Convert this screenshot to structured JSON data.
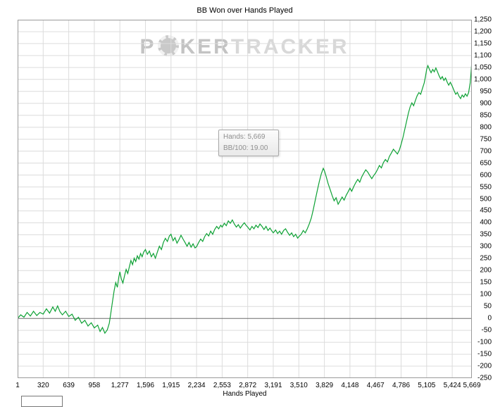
{
  "watermark": {
    "part1": "P",
    "part2": "KER",
    "part3": "TRACKER"
  },
  "tooltip": {
    "hands": "Hands: 5,669",
    "bb100": "BB/100: 19.00"
  },
  "chart_data": {
    "type": "line",
    "title": "BB Won over Hands Played",
    "xlabel": "Hands Played",
    "ylabel": "BB Won",
    "xlim": [
      1,
      5669
    ],
    "ylim": [
      -250,
      1250
    ],
    "grid": true,
    "legend": "none",
    "line_color": "#0da134",
    "grid_color": "#dcdcdc",
    "zero_color": "#6b6b6b",
    "frame_color": "#9a9a9a",
    "x_ticks": [
      1,
      320,
      639,
      958,
      1277,
      1596,
      1915,
      2234,
      2553,
      2872,
      3191,
      3510,
      3829,
      4148,
      4467,
      4786,
      5105,
      5424,
      5669
    ],
    "x_tick_labels": [
      "1",
      "320",
      "639",
      "958",
      "1,277",
      "1,596",
      "1,915",
      "2,234",
      "2,553",
      "2,872",
      "3,191",
      "3,510",
      "3,829",
      "4,148",
      "4,467",
      "4,786",
      "5,105",
      "5,424",
      "5,669"
    ],
    "y_ticks": [
      -250,
      -200,
      -150,
      -100,
      -50,
      0,
      50,
      100,
      150,
      200,
      250,
      300,
      350,
      400,
      450,
      500,
      550,
      600,
      650,
      700,
      750,
      800,
      850,
      900,
      950,
      1000,
      1050,
      1100,
      1150,
      1200,
      1250
    ],
    "y_tick_labels": [
      "-250",
      "-200",
      "-150",
      "-100",
      "-50",
      "0",
      "50",
      "100",
      "150",
      "200",
      "250",
      "300",
      "350",
      "400",
      "450",
      "500",
      "550",
      "600",
      "650",
      "700",
      "750",
      "800",
      "850",
      "900",
      "950",
      "1,000",
      "1,050",
      "1,100",
      "1,150",
      "1,200",
      "1,250"
    ],
    "series": [
      {
        "name": "BB Won",
        "points": [
          [
            1,
            0
          ],
          [
            40,
            15
          ],
          [
            80,
            5
          ],
          [
            120,
            25
          ],
          [
            160,
            10
          ],
          [
            200,
            30
          ],
          [
            240,
            12
          ],
          [
            280,
            25
          ],
          [
            320,
            18
          ],
          [
            360,
            40
          ],
          [
            400,
            22
          ],
          [
            440,
            48
          ],
          [
            470,
            30
          ],
          [
            500,
            52
          ],
          [
            530,
            28
          ],
          [
            560,
            15
          ],
          [
            600,
            30
          ],
          [
            639,
            8
          ],
          [
            680,
            18
          ],
          [
            720,
            -8
          ],
          [
            760,
            5
          ],
          [
            800,
            -20
          ],
          [
            840,
            -8
          ],
          [
            880,
            -32
          ],
          [
            920,
            -18
          ],
          [
            958,
            -40
          ],
          [
            1000,
            -28
          ],
          [
            1030,
            -55
          ],
          [
            1060,
            -38
          ],
          [
            1090,
            -62
          ],
          [
            1120,
            -48
          ],
          [
            1145,
            -20
          ],
          [
            1165,
            25
          ],
          [
            1185,
            70
          ],
          [
            1205,
            115
          ],
          [
            1225,
            150
          ],
          [
            1245,
            130
          ],
          [
            1265,
            175
          ],
          [
            1277,
            195
          ],
          [
            1295,
            165
          ],
          [
            1315,
            148
          ],
          [
            1335,
            178
          ],
          [
            1355,
            205
          ],
          [
            1375,
            188
          ],
          [
            1395,
            215
          ],
          [
            1415,
            242
          ],
          [
            1435,
            225
          ],
          [
            1455,
            252
          ],
          [
            1475,
            238
          ],
          [
            1495,
            262
          ],
          [
            1515,
            248
          ],
          [
            1535,
            272
          ],
          [
            1555,
            258
          ],
          [
            1575,
            278
          ],
          [
            1596,
            288
          ],
          [
            1620,
            268
          ],
          [
            1645,
            282
          ],
          [
            1670,
            258
          ],
          [
            1695,
            272
          ],
          [
            1720,
            252
          ],
          [
            1745,
            278
          ],
          [
            1770,
            302
          ],
          [
            1795,
            288
          ],
          [
            1820,
            318
          ],
          [
            1845,
            335
          ],
          [
            1870,
            322
          ],
          [
            1895,
            345
          ],
          [
            1915,
            352
          ],
          [
            1940,
            325
          ],
          [
            1965,
            338
          ],
          [
            1990,
            315
          ],
          [
            2015,
            330
          ],
          [
            2040,
            348
          ],
          [
            2065,
            332
          ],
          [
            2090,
            318
          ],
          [
            2115,
            302
          ],
          [
            2140,
            318
          ],
          [
            2165,
            298
          ],
          [
            2190,
            312
          ],
          [
            2215,
            295
          ],
          [
            2234,
            300
          ],
          [
            2260,
            318
          ],
          [
            2285,
            332
          ],
          [
            2310,
            322
          ],
          [
            2335,
            342
          ],
          [
            2360,
            355
          ],
          [
            2385,
            345
          ],
          [
            2410,
            365
          ],
          [
            2435,
            352
          ],
          [
            2460,
            372
          ],
          [
            2485,
            385
          ],
          [
            2510,
            375
          ],
          [
            2535,
            390
          ],
          [
            2553,
            382
          ],
          [
            2580,
            398
          ],
          [
            2605,
            388
          ],
          [
            2630,
            408
          ],
          [
            2655,
            398
          ],
          [
            2680,
            412
          ],
          [
            2705,
            395
          ],
          [
            2730,
            382
          ],
          [
            2755,
            392
          ],
          [
            2780,
            378
          ],
          [
            2805,
            390
          ],
          [
            2830,
            400
          ],
          [
            2855,
            388
          ],
          [
            2872,
            382
          ],
          [
            2900,
            370
          ],
          [
            2925,
            385
          ],
          [
            2950,
            375
          ],
          [
            2975,
            390
          ],
          [
            3000,
            380
          ],
          [
            3025,
            395
          ],
          [
            3050,
            385
          ],
          [
            3075,
            372
          ],
          [
            3100,
            385
          ],
          [
            3125,
            368
          ],
          [
            3150,
            378
          ],
          [
            3175,
            365
          ],
          [
            3191,
            358
          ],
          [
            3220,
            370
          ],
          [
            3245,
            355
          ],
          [
            3270,
            365
          ],
          [
            3295,
            352
          ],
          [
            3320,
            368
          ],
          [
            3345,
            375
          ],
          [
            3370,
            360
          ],
          [
            3395,
            348
          ],
          [
            3420,
            358
          ],
          [
            3445,
            342
          ],
          [
            3470,
            352
          ],
          [
            3495,
            336
          ],
          [
            3510,
            342
          ],
          [
            3540,
            352
          ],
          [
            3565,
            368
          ],
          [
            3590,
            358
          ],
          [
            3615,
            375
          ],
          [
            3640,
            395
          ],
          [
            3665,
            420
          ],
          [
            3690,
            455
          ],
          [
            3715,
            495
          ],
          [
            3740,
            535
          ],
          [
            3765,
            572
          ],
          [
            3790,
            605
          ],
          [
            3815,
            628
          ],
          [
            3829,
            618
          ],
          [
            3850,
            595
          ],
          [
            3875,
            565
          ],
          [
            3900,
            540
          ],
          [
            3925,
            515
          ],
          [
            3950,
            492
          ],
          [
            3975,
            505
          ],
          [
            4000,
            478
          ],
          [
            4025,
            492
          ],
          [
            4050,
            508
          ],
          [
            4075,
            495
          ],
          [
            4100,
            515
          ],
          [
            4125,
            530
          ],
          [
            4148,
            545
          ],
          [
            4170,
            532
          ],
          [
            4195,
            552
          ],
          [
            4220,
            568
          ],
          [
            4245,
            582
          ],
          [
            4270,
            570
          ],
          [
            4295,
            592
          ],
          [
            4320,
            608
          ],
          [
            4345,
            622
          ],
          [
            4370,
            612
          ],
          [
            4395,
            598
          ],
          [
            4420,
            585
          ],
          [
            4445,
            598
          ],
          [
            4467,
            608
          ],
          [
            4490,
            622
          ],
          [
            4515,
            640
          ],
          [
            4540,
            630
          ],
          [
            4565,
            652
          ],
          [
            4590,
            665
          ],
          [
            4615,
            655
          ],
          [
            4640,
            678
          ],
          [
            4665,
            692
          ],
          [
            4690,
            708
          ],
          [
            4715,
            698
          ],
          [
            4740,
            688
          ],
          [
            4765,
            705
          ],
          [
            4786,
            728
          ],
          [
            4810,
            758
          ],
          [
            4832,
            792
          ],
          [
            4854,
            825
          ],
          [
            4876,
            858
          ],
          [
            4898,
            885
          ],
          [
            4920,
            902
          ],
          [
            4942,
            890
          ],
          [
            4964,
            912
          ],
          [
            4986,
            932
          ],
          [
            5008,
            945
          ],
          [
            5030,
            938
          ],
          [
            5052,
            962
          ],
          [
            5074,
            985
          ],
          [
            5090,
            1012
          ],
          [
            5105,
            1042
          ],
          [
            5120,
            1058
          ],
          [
            5140,
            1042
          ],
          [
            5160,
            1028
          ],
          [
            5180,
            1042
          ],
          [
            5200,
            1032
          ],
          [
            5220,
            1048
          ],
          [
            5240,
            1032
          ],
          [
            5260,
            1015
          ],
          [
            5280,
            1002
          ],
          [
            5300,
            1012
          ],
          [
            5320,
            996
          ],
          [
            5340,
            1006
          ],
          [
            5360,
            990
          ],
          [
            5380,
            976
          ],
          [
            5400,
            988
          ],
          [
            5424,
            972
          ],
          [
            5448,
            952
          ],
          [
            5468,
            938
          ],
          [
            5488,
            946
          ],
          [
            5508,
            930
          ],
          [
            5528,
            920
          ],
          [
            5548,
            935
          ],
          [
            5568,
            926
          ],
          [
            5588,
            940
          ],
          [
            5608,
            930
          ],
          [
            5628,
            944
          ],
          [
            5648,
            985
          ],
          [
            5660,
            1035
          ],
          [
            5669,
            1077
          ]
        ]
      }
    ]
  }
}
